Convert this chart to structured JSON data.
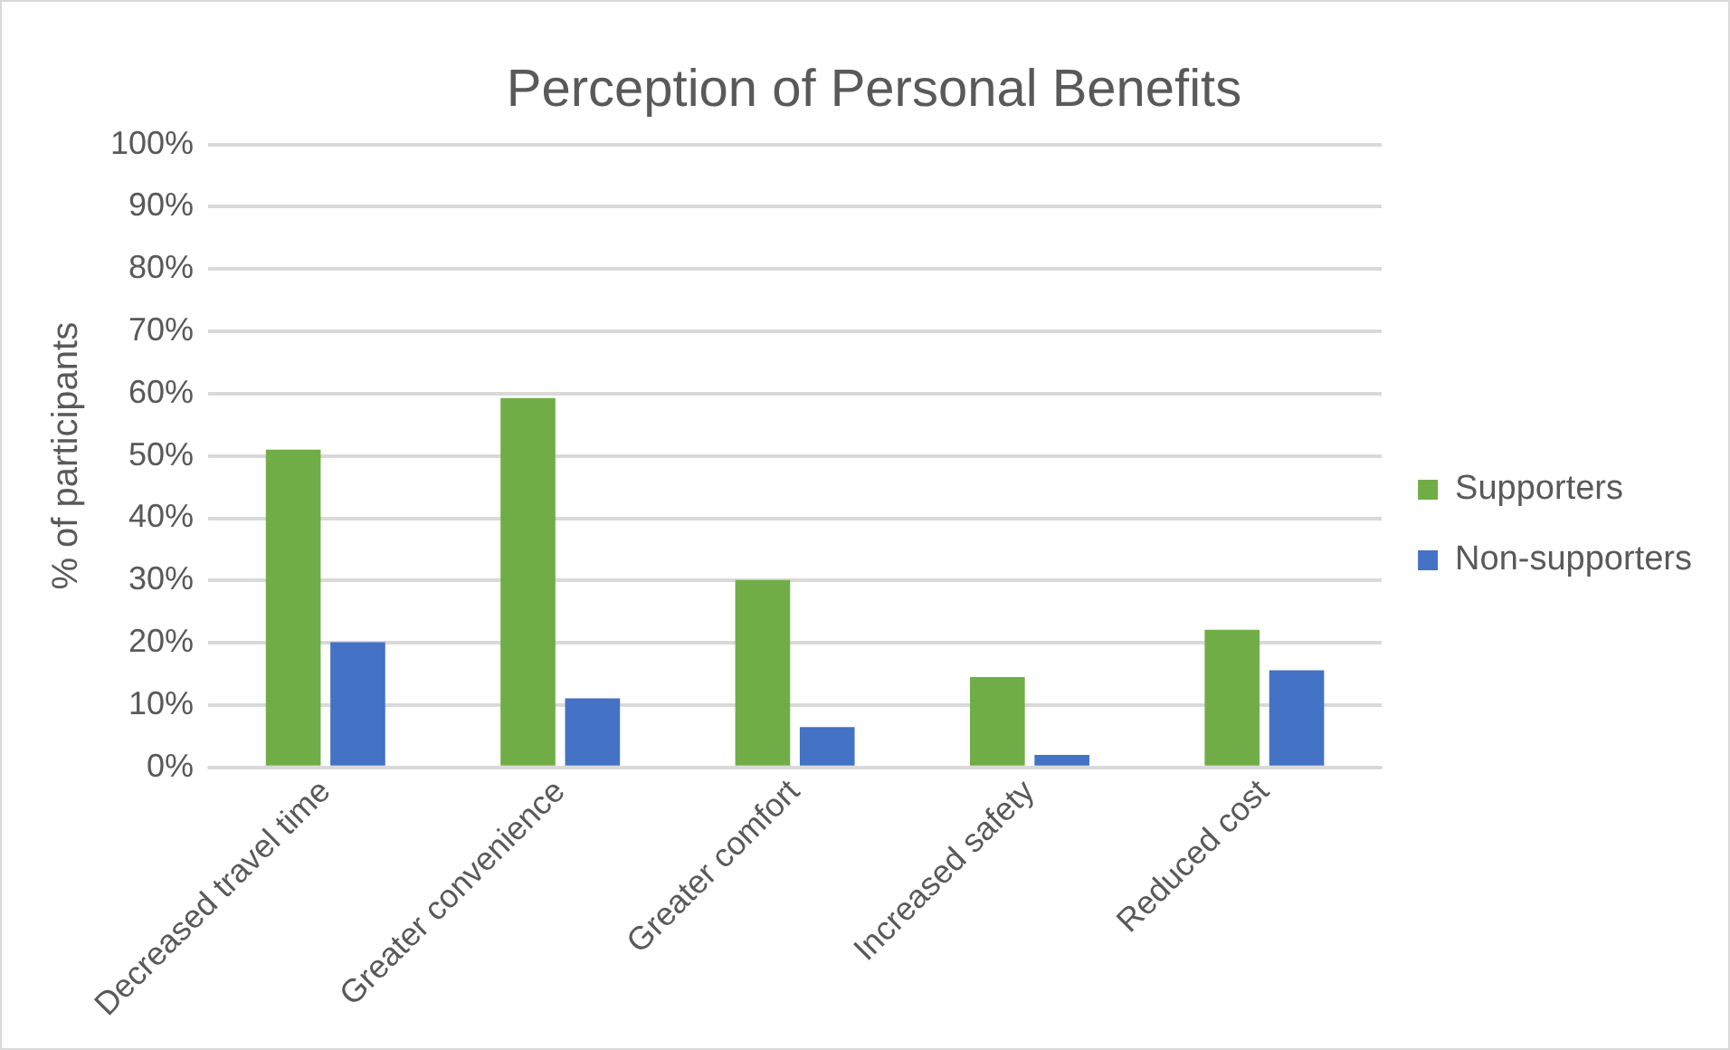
{
  "chart_data": {
    "type": "bar",
    "title": "Perception of Personal Benefits",
    "ylabel": "% of participants",
    "categories": [
      "Decreased travel time",
      "Greater convenience",
      "Greater comfort",
      "Increased safety",
      "Reduced cost"
    ],
    "series": [
      {
        "name": "Supporters",
        "color": "#70ad47",
        "values": [
          51,
          59.3,
          30.1,
          14.5,
          22.1
        ]
      },
      {
        "name": "Non-supporters",
        "color": "#4472c4",
        "values": [
          20.1,
          11.1,
          6.5,
          2,
          15.6
        ]
      }
    ],
    "ylim": [
      0,
      100
    ],
    "yticks": [
      {
        "value": 0,
        "label": "0%"
      },
      {
        "value": 10,
        "label": "10%"
      },
      {
        "value": 20,
        "label": "20%"
      },
      {
        "value": 30,
        "label": "30%"
      },
      {
        "value": 40,
        "label": "40%"
      },
      {
        "value": 50,
        "label": "50%"
      },
      {
        "value": 60,
        "label": "60%"
      },
      {
        "value": 70,
        "label": "70%"
      },
      {
        "value": 80,
        "label": "80%"
      },
      {
        "value": 90,
        "label": "90%"
      },
      {
        "value": 100,
        "label": "100%"
      }
    ],
    "grid": "y",
    "legend": "right"
  }
}
